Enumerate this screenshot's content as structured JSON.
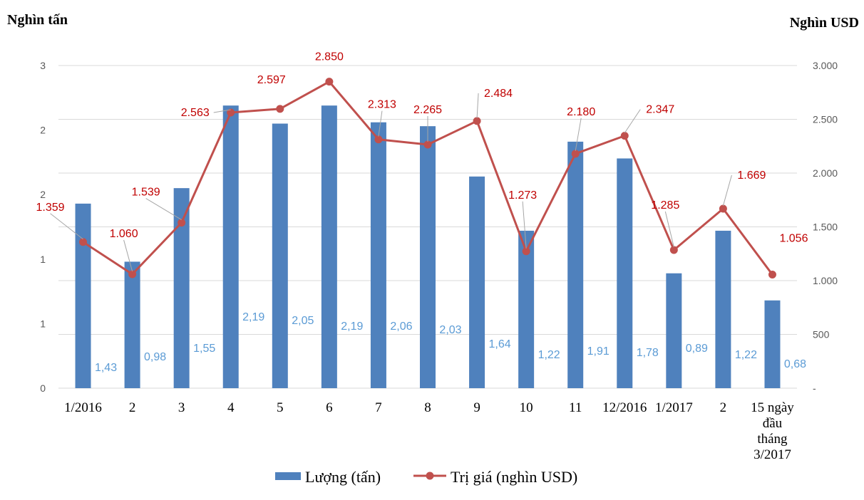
{
  "chart_data": {
    "type": "bar",
    "y_left_title": "Nghìn tấn",
    "y_right_title": "Nghìn USD",
    "y_left_ticks": [
      "0",
      "1",
      "1",
      "2",
      "2",
      "3"
    ],
    "y_right_ticks": [
      "-",
      "500",
      "1.000",
      "1.500",
      "2.000",
      "2.500",
      "3.000"
    ],
    "ylim_left": [
      0,
      2.5
    ],
    "ylim_right": [
      0,
      3000
    ],
    "categories": [
      "1/2016",
      "2",
      "3",
      "4",
      "5",
      "6",
      "7",
      "8",
      "9",
      "10",
      "11",
      "12/2016",
      "1/2017",
      "2",
      "15 ngày đầu tháng 3/2017"
    ],
    "series": [
      {
        "name": "Lượng (tấn)",
        "type": "bar",
        "axis": "left",
        "color": "#4f81bd",
        "values": [
          1.43,
          0.98,
          1.55,
          2.19,
          2.05,
          2.19,
          2.06,
          2.03,
          1.64,
          1.22,
          1.91,
          1.78,
          0.89,
          1.22,
          0.68
        ],
        "labels": [
          "1,43",
          "0,98",
          "1,55",
          "2,19",
          "2,05",
          "2,19",
          "2,06",
          "2,03",
          "1,64",
          "1,22",
          "1,91",
          "1,78",
          "0,89",
          "1,22",
          "0,68"
        ]
      },
      {
        "name": "Trị giá (nghìn USD)",
        "type": "line",
        "axis": "right",
        "color": "#c0504d",
        "values": [
          1359,
          1060,
          1539,
          2563,
          2597,
          2850,
          2313,
          2265,
          2484,
          1273,
          2180,
          2347,
          1285,
          1669,
          1056
        ],
        "labels": [
          "1.359",
          "1.060",
          "1.539",
          "2.563",
          "2.597",
          "2.850",
          "2.313",
          "2.265",
          "2.484",
          "1.273",
          "2.180",
          "2.347",
          "1.285",
          "1.669",
          "1.056"
        ]
      }
    ],
    "legend": "bottom",
    "grid": true
  }
}
